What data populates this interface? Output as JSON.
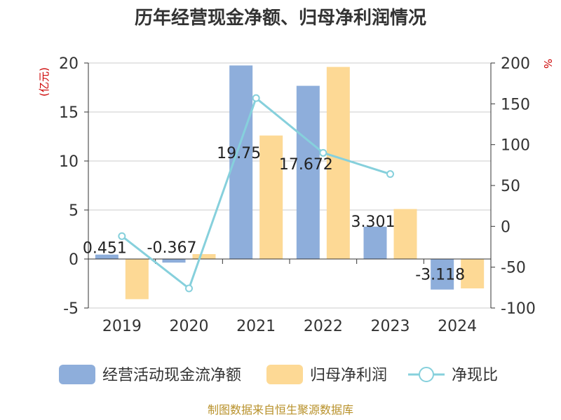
{
  "chart_data": {
    "type": "bar",
    "title": "历年经营现金净额、归母净利润情况",
    "categories": [
      "2019",
      "2020",
      "2021",
      "2022",
      "2023",
      "2024"
    ],
    "series": [
      {
        "name": "经营活动现金流净额",
        "type": "bar",
        "axis": "left",
        "color": "#8eaedb",
        "values": [
          0.451,
          -0.367,
          19.75,
          17.672,
          3.301,
          -3.118
        ]
      },
      {
        "name": "归母净利润",
        "type": "bar",
        "axis": "left",
        "color": "#fdd995",
        "values": [
          -4.1,
          0.5,
          12.6,
          19.6,
          5.1,
          -3.0
        ]
      },
      {
        "name": "净现比",
        "type": "line",
        "axis": "right",
        "color": "#86d0dc",
        "values": [
          -12,
          -76,
          157,
          90,
          64,
          null
        ]
      }
    ],
    "data_labels": [
      "0.451",
      "-0.367",
      "19.75",
      "17.672",
      "3.301",
      "-3.118"
    ],
    "y_left": {
      "unit": "(亿元)",
      "ylim": [
        -5,
        20
      ],
      "ticks": [
        "20",
        "15",
        "10",
        "5",
        "0",
        "-5"
      ]
    },
    "y_right": {
      "unit": "%",
      "ylim": [
        -100,
        200
      ],
      "ticks": [
        "200",
        "150",
        "100",
        "50",
        "0",
        "-50",
        "-100"
      ]
    },
    "grid": true,
    "legend_position": "bottom",
    "source": "制图数据来自恒生聚源数据库"
  }
}
